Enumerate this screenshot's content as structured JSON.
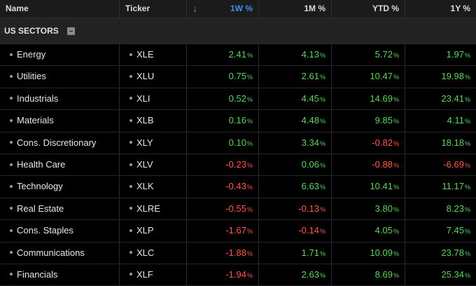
{
  "header": {
    "name": "Name",
    "ticker": "Ticker",
    "w1": "1W %",
    "m1": "1M %",
    "ytd": "YTD %",
    "y1": "1Y %",
    "sort_icon": "arrow-down-icon"
  },
  "group": {
    "label": "US SECTORS",
    "collapse_icon": "minus-box-icon"
  },
  "pct_sign": "%",
  "colors": {
    "positive": "#5fd35f",
    "negative": "#ff5a4a",
    "sort_accent": "#3f8ef0"
  },
  "rows": [
    {
      "name": "Energy",
      "ticker": "XLE",
      "w1": "2.41",
      "m1": "4.13",
      "ytd": "5.72",
      "y1": "1.97"
    },
    {
      "name": "Utilities",
      "ticker": "XLU",
      "w1": "0.75",
      "m1": "2.61",
      "ytd": "10.47",
      "y1": "19.98"
    },
    {
      "name": "Industrials",
      "ticker": "XLI",
      "w1": "0.52",
      "m1": "4.45",
      "ytd": "14.69",
      "y1": "23.41"
    },
    {
      "name": "Materials",
      "ticker": "XLB",
      "w1": "0.16",
      "m1": "4.48",
      "ytd": "9.85",
      "y1": "4.11"
    },
    {
      "name": "Cons. Discretionary",
      "ticker": "XLY",
      "w1": "0.10",
      "m1": "3.34",
      "ytd": "-0.82",
      "y1": "18.18"
    },
    {
      "name": "Health Care",
      "ticker": "XLV",
      "w1": "-0.23",
      "m1": "0.06",
      "ytd": "-0.88",
      "y1": "-6.69"
    },
    {
      "name": "Technology",
      "ticker": "XLK",
      "w1": "-0.43",
      "m1": "6.63",
      "ytd": "10.41",
      "y1": "11.17"
    },
    {
      "name": "Real Estate",
      "ticker": "XLRE",
      "w1": "-0.55",
      "m1": "-0.13",
      "ytd": "3.80",
      "y1": "8.23"
    },
    {
      "name": "Cons. Staples",
      "ticker": "XLP",
      "w1": "-1.67",
      "m1": "-0.14",
      "ytd": "4.05",
      "y1": "7.45"
    },
    {
      "name": "Communications",
      "ticker": "XLC",
      "w1": "-1.88",
      "m1": "1.71",
      "ytd": "10.09",
      "y1": "23.78"
    },
    {
      "name": "Financials",
      "ticker": "XLF",
      "w1": "-1.94",
      "m1": "2.63",
      "ytd": "8.69",
      "y1": "25.34"
    }
  ]
}
